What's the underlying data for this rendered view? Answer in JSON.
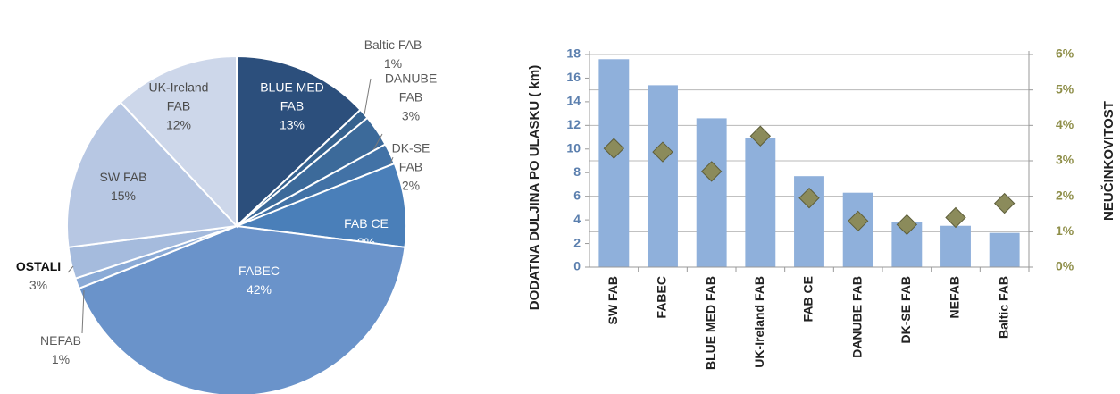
{
  "chart_data": [
    {
      "type": "pie",
      "title": "",
      "slices": [
        {
          "label_lines": [
            "BLUE MED",
            "FAB",
            "13%"
          ],
          "value": 13,
          "color": "#2c4f7c",
          "text_color": "#ffffff"
        },
        {
          "label_lines": [
            "Baltic FAB",
            "1%"
          ],
          "value": 1,
          "color": "#36628f",
          "text_color": "#5a5a5a"
        },
        {
          "label_lines": [
            "DANUBE",
            "FAB",
            "3%"
          ],
          "value": 3,
          "color": "#3c6a9a",
          "text_color": "#5a5a5a"
        },
        {
          "label_lines": [
            "DK-SE",
            "FAB",
            "2%"
          ],
          "value": 2,
          "color": "#4272a6",
          "text_color": "#5a5a5a"
        },
        {
          "label_lines": [
            "FAB CE",
            "8%"
          ],
          "value": 8,
          "color": "#4a7fb9",
          "text_color": "#ffffff"
        },
        {
          "label_lines": [
            "FABEC",
            "42%"
          ],
          "value": 42,
          "color": "#6a93ca",
          "text_color": "#ffffff"
        },
        {
          "label_lines": [
            "NEFAB",
            "1%"
          ],
          "value": 1,
          "color": "#8aaad6",
          "text_color": "#5a5a5a"
        },
        {
          "label_lines": [
            "OSTALI",
            "3%"
          ],
          "value": 3,
          "color": "#a5bbdd",
          "text_color": "#5a5a5a"
        },
        {
          "label_lines": [
            "SW FAB",
            "15%"
          ],
          "value": 15,
          "color": "#b7c7e3",
          "text_color": "#4a4a4a"
        },
        {
          "label_lines": [
            "UK-Ireland",
            "FAB",
            "12%"
          ],
          "value": 12,
          "color": "#cdd7ea",
          "text_color": "#4a4a4a"
        }
      ]
    },
    {
      "type": "bar",
      "categories": [
        "SW FAB",
        "FABEC",
        "BLUE MED FAB",
        "UK-Ireland FAB",
        "FAB CE",
        "DANUBE FAB",
        "DK-SE FAB",
        "NEFAB",
        "Baltic FAB"
      ],
      "series": [
        {
          "axis": "left",
          "kind": "bar",
          "color": "#8fb0db",
          "values": [
            17.6,
            15.4,
            12.6,
            10.9,
            7.7,
            6.3,
            3.8,
            3.5,
            2.9
          ]
        },
        {
          "axis": "right",
          "kind": "marker",
          "color": "#8b8b5b",
          "values": [
            3.35,
            3.25,
            2.7,
            3.7,
            1.95,
            1.3,
            1.2,
            1.4,
            1.8
          ]
        }
      ],
      "ylabel": "DODATNA DULJINA PO ULASKU ( km)",
      "y2label": "NEUČINKOVITOST",
      "ylim": [
        0,
        18
      ],
      "yticks": [
        "0",
        "2",
        "4",
        "6",
        "8",
        "10",
        "12",
        "14",
        "16",
        "18"
      ],
      "y2lim": [
        0,
        6
      ],
      "y2ticks": [
        "0%",
        "1%",
        "2%",
        "3%",
        "4%",
        "5%",
        "6%"
      ],
      "grid": true,
      "left_tick_color": "#5b7fae",
      "right_tick_color": "#8f8f4a"
    }
  ]
}
